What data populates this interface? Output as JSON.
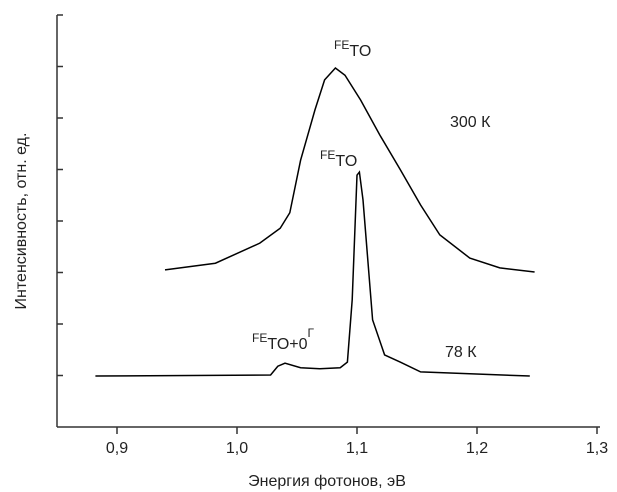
{
  "chart_data": {
    "type": "line",
    "xlabel": "Энергия фотонов, эВ",
    "ylabel": "Интенсивность, отн. ед.",
    "xlim": [
      0.85,
      1.3
    ],
    "ylim": [
      0,
      8
    ],
    "xticks": [
      {
        "value": 0.9,
        "label": "0,9"
      },
      {
        "value": 1.0,
        "label": "1,0"
      },
      {
        "value": 1.1,
        "label": "1,1"
      },
      {
        "value": 1.2,
        "label": "1,2"
      },
      {
        "value": 1.3,
        "label": "1,3"
      }
    ],
    "yticks": [
      1,
      2,
      3,
      4,
      5,
      6,
      7,
      8
    ],
    "series": [
      {
        "name": "300 К",
        "color": "#000000",
        "x": [
          0.94,
          0.982,
          1.019,
          1.036,
          1.044,
          1.053,
          1.065,
          1.073,
          1.082,
          1.09,
          1.103,
          1.119,
          1.136,
          1.153,
          1.169,
          1.194,
          1.219,
          1.248
        ],
        "values": [
          3.05,
          3.18,
          3.57,
          3.86,
          4.16,
          5.18,
          6.16,
          6.74,
          6.97,
          6.83,
          6.35,
          5.67,
          5.0,
          4.31,
          3.73,
          3.28,
          3.09,
          3.01
        ]
      },
      {
        "name": "78 К",
        "color": "#000000",
        "x": [
          0.882,
          1.028,
          1.034,
          1.04,
          1.053,
          1.069,
          1.086,
          1.092,
          1.096,
          1.1,
          1.102,
          1.105,
          1.113,
          1.123,
          1.136,
          1.153,
          1.244
        ],
        "values": [
          0.99,
          1.01,
          1.18,
          1.24,
          1.15,
          1.13,
          1.15,
          1.26,
          2.47,
          4.89,
          4.95,
          4.41,
          2.08,
          1.4,
          1.26,
          1.07,
          0.99
        ]
      }
    ],
    "annotations": [
      {
        "text": "FE",
        "sub": "TO"
      },
      {
        "text": "FE",
        "sub": "TO"
      },
      {
        "text": "FE",
        "sub": "TO+0",
        "sup": "Г"
      }
    ]
  }
}
